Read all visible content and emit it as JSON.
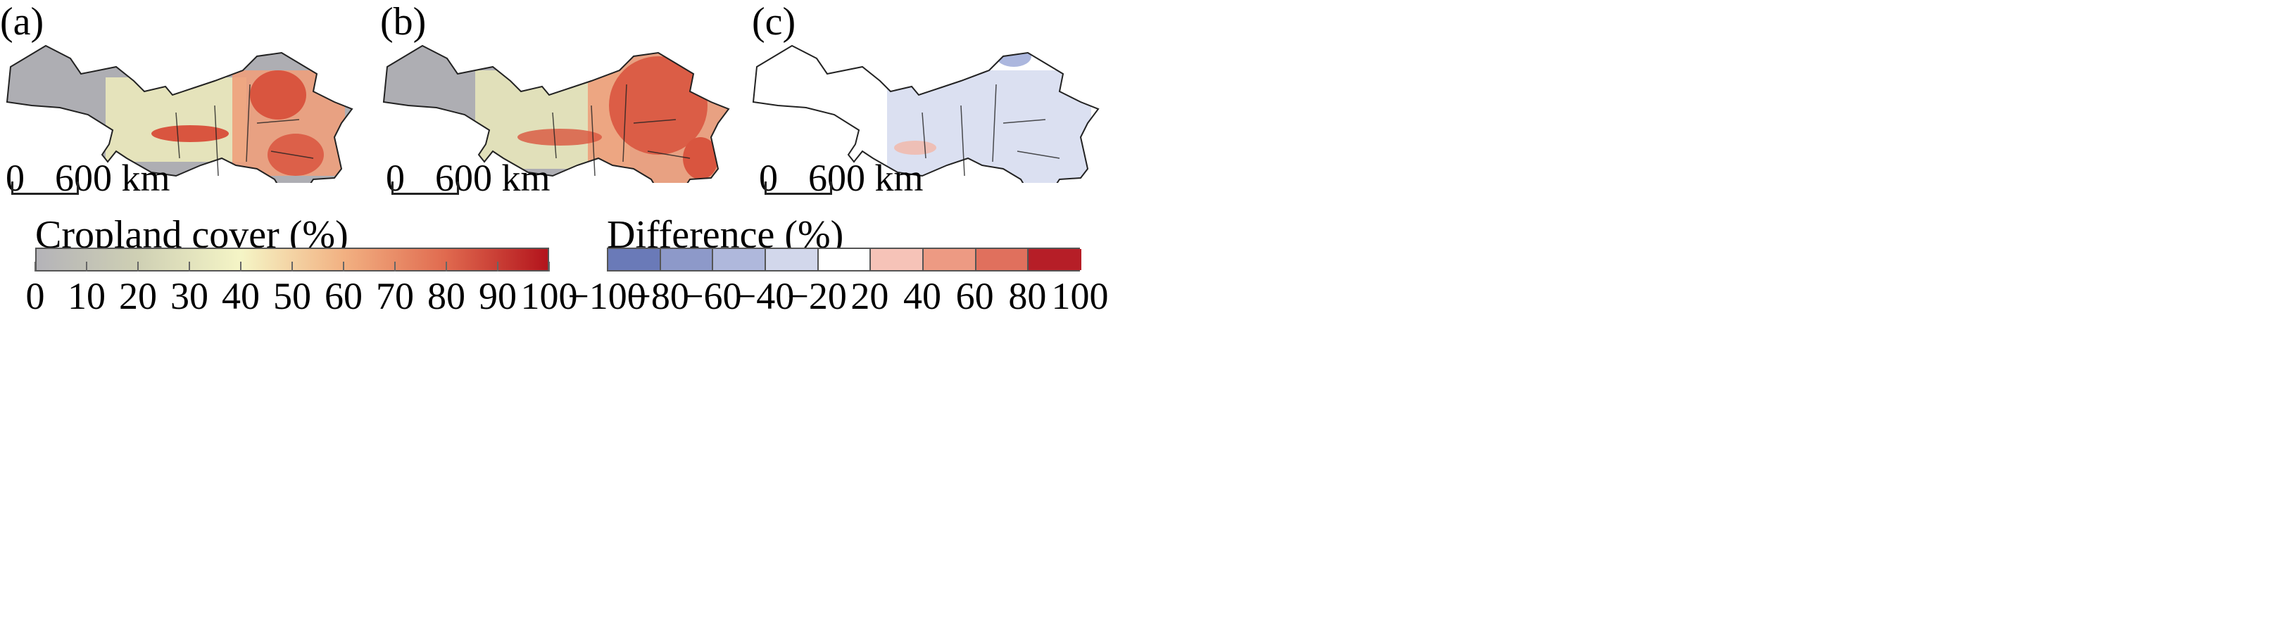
{
  "panels": [
    {
      "label": "(a)"
    },
    {
      "label": "(b)"
    },
    {
      "label": "(c)"
    }
  ],
  "scale_bar": {
    "zero": "0",
    "max": "600 km"
  },
  "cropland_legend": {
    "title": "Cropland cover (%)",
    "ticks": [
      "0",
      "10",
      "20",
      "30",
      "40",
      "50",
      "60",
      "70",
      "80",
      "90",
      "100"
    ],
    "colors": [
      "#b4b3b8",
      "#cfd0b4",
      "#f5f5c6",
      "#f2b182",
      "#e06a4f",
      "#b3141c"
    ]
  },
  "difference_legend": {
    "title": "Difference (%)",
    "ticks": [
      "−100",
      "−80",
      "−60",
      "−40",
      "−20",
      "20",
      "40",
      "60",
      "80",
      "100"
    ],
    "colors": [
      "#6a7ab8",
      "#8d99c9",
      "#afb8dc",
      "#d2d7eb",
      "#ffffff",
      "#f6c3b8",
      "#ed9a83",
      "#e0705d",
      "#b61e27"
    ]
  },
  "map_colors": {
    "gray": "#aeaeb3",
    "yellow": "#eeecbc",
    "orange": "#eea07c",
    "red": "#d9553f",
    "blue": "#97a5d6",
    "pink": "#f3b6a8",
    "outline": "#222222"
  }
}
